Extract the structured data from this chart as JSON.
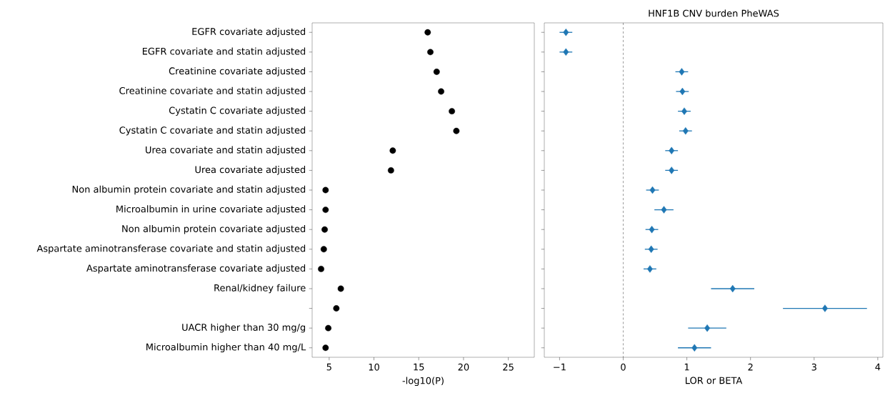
{
  "chart_data": [
    {
      "type": "scatter",
      "orientation": "horizontal",
      "categories": [
        "EGFR covariate adjusted",
        "EGFR covariate and statin adjusted",
        "Creatinine covariate adjusted",
        "Creatinine covariate and statin adjusted",
        "Cystatin C covariate adjusted",
        "Cystatin C covariate and statin adjusted",
        "Urea covariate and statin adjusted",
        "Urea covariate adjusted",
        "Non albumin protein covariate and statin adjusted",
        "Microalbumin in urine covariate adjusted",
        "Non albumin protein covariate adjusted",
        "Aspartate aminotransferase covariate and statin adjusted",
        "Aspartate aminotransferase covariate adjusted",
        "Renal/kidney failure",
        null,
        "UACR higher than 30 mg/g",
        "Microalbumin higher than 40 mg/L"
      ],
      "values": [
        16.0,
        16.3,
        17.0,
        17.5,
        18.7,
        19.2,
        12.1,
        11.9,
        4.6,
        4.6,
        4.5,
        4.4,
        4.1,
        6.3,
        5.8,
        4.9,
        4.6
      ],
      "color": "#000000",
      "marker": "circle",
      "xlabel": "-log10(P)",
      "xlim": [
        3.1,
        27.9
      ],
      "xticks": [
        5,
        10,
        15,
        20,
        25
      ]
    },
    {
      "type": "scatter",
      "orientation": "horizontal",
      "title": "HNF1B CNV burden PheWAS",
      "categories": [
        null,
        null,
        null,
        null,
        null,
        null,
        null,
        null,
        null,
        null,
        null,
        null,
        null,
        null,
        null,
        null,
        null
      ],
      "values": [
        -0.9,
        -0.9,
        0.92,
        0.93,
        0.96,
        0.98,
        0.76,
        0.76,
        0.46,
        0.64,
        0.45,
        0.44,
        0.42,
        1.72,
        3.17,
        1.32,
        1.12
      ],
      "errors": [
        0.1,
        0.1,
        0.1,
        0.1,
        0.1,
        0.1,
        0.1,
        0.1,
        0.1,
        0.15,
        0.1,
        0.1,
        0.1,
        0.34,
        0.66,
        0.3,
        0.26
      ],
      "color": "#1f77b4",
      "marker": "diamond",
      "xlabel": "LOR or BETA",
      "xlim": [
        -1.24,
        4.08
      ],
      "xticks": [
        {
          "value": -1,
          "label": "−1"
        },
        0,
        1,
        2,
        3,
        4
      ],
      "ref_lines": [
        {
          "axis": "x",
          "value": 0,
          "color": "#000000",
          "line_style": "dashed"
        }
      ],
      "tick_labels": "x"
    }
  ]
}
